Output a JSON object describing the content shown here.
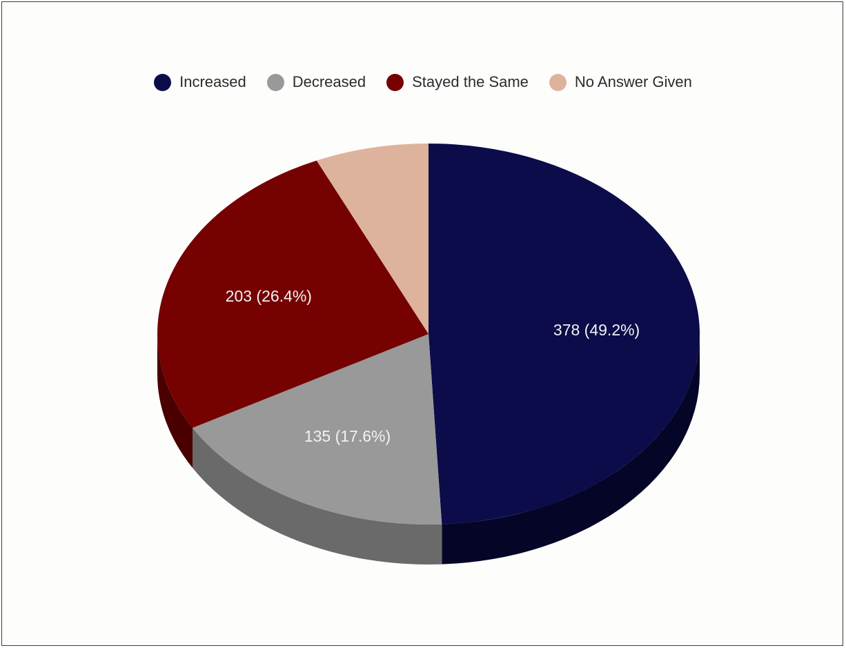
{
  "chart_data": {
    "type": "pie",
    "style": "3d",
    "legend_position": "top",
    "slices": [
      {
        "name": "Increased",
        "value": 378,
        "percent": 49.2,
        "label": "378 (49.2%)",
        "color": "#0c0c4a",
        "side_color": "#050528"
      },
      {
        "name": "Decreased",
        "value": 135,
        "percent": 17.6,
        "label": "135 (17.6%)",
        "color": "#999999",
        "side_color": "#6a6a6a"
      },
      {
        "name": "Stayed the Same",
        "value": 203,
        "percent": 26.4,
        "label": "203 (26.4%)",
        "color": "#750101",
        "side_color": "#4a0000"
      },
      {
        "name": "No Answer Given",
        "value": 52,
        "percent": 6.8,
        "label": "",
        "color": "#ddb39d",
        "side_color": "#b08a78"
      }
    ]
  }
}
